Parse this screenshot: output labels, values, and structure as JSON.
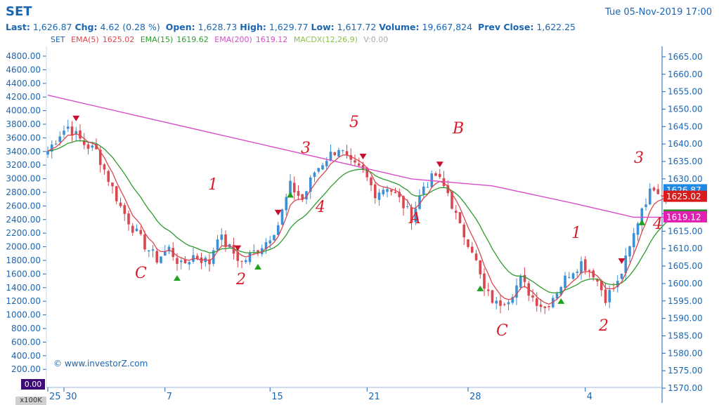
{
  "header": {
    "symbol": "SET",
    "date": "Tue 05-Nov-2019 17:00",
    "last_label": "Last:",
    "last_value": "1,626.87",
    "chg_label": "Chg:",
    "chg_value": "4.62 (0.28 %)",
    "open_label": "Open:",
    "open_value": "1,628.73",
    "high_label": "High:",
    "high_value": "1,629.77",
    "low_label": "Low:",
    "low_value": "1,617.72",
    "volume_label": "Volume:",
    "volume_value": "19,667,824",
    "prev_close_label": "Prev Close:",
    "prev_close_value": "1,622.25"
  },
  "legend": {
    "symbol": "SET",
    "ema5_label": "EMA(5)",
    "ema5_value": "1625.02",
    "ema15_label": "EMA(15)",
    "ema15_value": "1619.62",
    "ema200_label": "EMA(200)",
    "ema200_value": "1619.12",
    "macdx_label": "MACDX(12,26,9)",
    "volume_label": "V:0.00"
  },
  "watermark": "© www.investorZ.com",
  "volume_box": "0.00",
  "volume_unit": "x100K",
  "colors": {
    "up": "#3d8fd6",
    "down": "#d9474f",
    "ema5": "#d9474f",
    "ema15": "#2f9a2f",
    "ema200": "#d64fc8",
    "axis": "#1a66b3",
    "annotation": "#d81b2a",
    "last_tag": "#1e88e5",
    "ema5_tag": "#d81b1b",
    "ema15_tag": "#2e8b2e",
    "ema200_tag": "#e020b0"
  },
  "chart_data": {
    "type": "candlestick",
    "right_axis": {
      "ylim": [
        1570,
        1667
      ],
      "ticks": [
        "1665.00",
        "1660.00",
        "1655.00",
        "1650.00",
        "1645.00",
        "1640.00",
        "1635.00",
        "1630.00",
        "1625.00",
        "1620.00",
        "1615.00",
        "1610.00",
        "1605.00",
        "1600.00",
        "1595.00",
        "1590.00",
        "1585.00",
        "1580.00",
        "1575.00",
        "1570.00"
      ]
    },
    "left_axis": {
      "ticks": [
        "4800.00",
        "4600.00",
        "4400.00",
        "4200.00",
        "4000.00",
        "3800.00",
        "3600.00",
        "3400.00",
        "3200.00",
        "3000.00",
        "2800.00",
        "2600.00",
        "2400.00",
        "2200.00",
        "2000.00",
        "1800.00",
        "1600.00",
        "1400.00",
        "1200.00",
        "1000.00",
        "800.00",
        "600.00",
        "400.00",
        "200.00"
      ]
    },
    "x_ticks": [
      {
        "label": "25",
        "i": 0
      },
      {
        "label": "30",
        "i": 4
      },
      {
        "label": "7",
        "i": 29
      },
      {
        "label": "15",
        "i": 55
      },
      {
        "label": "21",
        "i": 79
      },
      {
        "label": "28",
        "i": 104
      },
      {
        "label": "4",
        "i": 133
      }
    ],
    "bar_count": 145,
    "price_tags": [
      {
        "value": 1626.87,
        "text": "1626.87",
        "color_key": "last_tag"
      },
      {
        "value": 1625.02,
        "text": "1625.02",
        "color_key": "ema5_tag"
      },
      {
        "value": 1619.62,
        "text": "1619.62",
        "color_key": "ema15_tag"
      },
      {
        "value": 1619.12,
        "text": "1619.12",
        "color_key": "ema200_tag"
      }
    ],
    "close_anchors": [
      [
        0,
        1638
      ],
      [
        3,
        1643
      ],
      [
        5,
        1645
      ],
      [
        9,
        1640
      ],
      [
        12,
        1638
      ],
      [
        15,
        1630
      ],
      [
        18,
        1622
      ],
      [
        21,
        1616
      ],
      [
        24,
        1611
      ],
      [
        27,
        1607
      ],
      [
        30,
        1610
      ],
      [
        33,
        1605
      ],
      [
        36,
        1608
      ],
      [
        40,
        1606
      ],
      [
        42,
        1614
      ],
      [
        45,
        1610
      ],
      [
        48,
        1606
      ],
      [
        51,
        1609
      ],
      [
        54,
        1612
      ],
      [
        57,
        1617
      ],
      [
        60,
        1628
      ],
      [
        63,
        1624
      ],
      [
        66,
        1632
      ],
      [
        69,
        1636
      ],
      [
        72,
        1639
      ],
      [
        75,
        1634
      ],
      [
        78,
        1632
      ],
      [
        81,
        1626
      ],
      [
        84,
        1628
      ],
      [
        87,
        1624
      ],
      [
        90,
        1619
      ],
      [
        93,
        1628
      ],
      [
        96,
        1631
      ],
      [
        99,
        1626
      ],
      [
        102,
        1616
      ],
      [
        105,
        1610
      ],
      [
        108,
        1598
      ],
      [
        111,
        1594
      ],
      [
        114,
        1596
      ],
      [
        117,
        1601
      ],
      [
        120,
        1596
      ],
      [
        123,
        1593
      ],
      [
        126,
        1598
      ],
      [
        129,
        1603
      ],
      [
        132,
        1606
      ],
      [
        135,
        1603
      ],
      [
        138,
        1596
      ],
      [
        141,
        1600
      ],
      [
        144,
        1610
      ],
      [
        147,
        1622
      ],
      [
        150,
        1628
      ],
      [
        152,
        1626
      ],
      [
        154,
        1627
      ]
    ],
    "ema200_points": [
      [
        0,
        1654
      ],
      [
        30,
        1646
      ],
      [
        60,
        1638
      ],
      [
        90,
        1630
      ],
      [
        110,
        1628
      ],
      [
        130,
        1623
      ],
      [
        145,
        1619
      ],
      [
        154,
        1619
      ]
    ],
    "buy_signals": [
      32,
      52,
      60,
      107,
      127,
      147
    ],
    "sell_signals": [
      7,
      47,
      57,
      78,
      97,
      142
    ],
    "annotations": [
      {
        "text": "C",
        "x": 192,
        "y": 396
      },
      {
        "text": "1",
        "x": 296,
        "y": 270
      },
      {
        "text": "2",
        "x": 336,
        "y": 405
      },
      {
        "text": "3",
        "x": 428,
        "y": 218
      },
      {
        "text": "4",
        "x": 449,
        "y": 302
      },
      {
        "text": "5",
        "x": 497,
        "y": 181
      },
      {
        "text": "A",
        "x": 583,
        "y": 318
      },
      {
        "text": "B",
        "x": 644,
        "y": 190
      },
      {
        "text": "C",
        "x": 706,
        "y": 478
      },
      {
        "text": "1",
        "x": 813,
        "y": 339
      },
      {
        "text": "2",
        "x": 852,
        "y": 471
      },
      {
        "text": "3",
        "x": 902,
        "y": 232
      },
      {
        "text": "4",
        "x": 929,
        "y": 326
      }
    ]
  }
}
